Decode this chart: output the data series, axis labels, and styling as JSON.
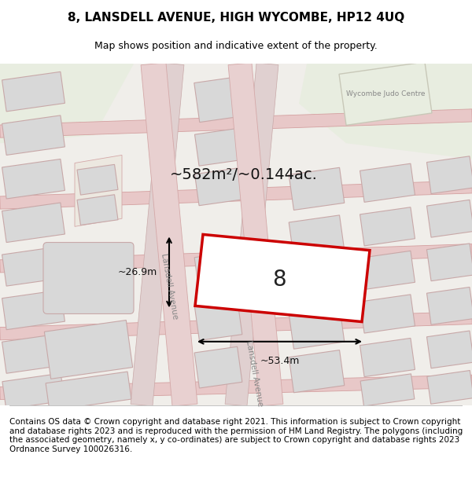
{
  "title": "8, LANSDELL AVENUE, HIGH WYCOMBE, HP12 4UQ",
  "subtitle": "Map shows position and indicative extent of the property.",
  "footer": "Contains OS data © Crown copyright and database right 2021. This information is subject to Crown copyright and database rights 2023 and is reproduced with the permission of HM Land Registry. The polygons (including the associated geometry, namely x, y co-ordinates) are subject to Crown copyright and database rights 2023 Ordnance Survey 100026316.",
  "area_label": "~582m²/~0.144ac.",
  "property_number": "8",
  "width_label": "~53.4m",
  "height_label": "~26.9m",
  "street_label_1": "Lansdell Avenue",
  "street_label_2": "Lansdell Avenue",
  "judo_label": "Wycombe Judo Centre",
  "bg_color": "#f5f4f1",
  "map_bg": "#f0eeea",
  "road_color": "#e8c8c8",
  "road_stroke": "#d4a0a0",
  "plot_color": "#cc0000",
  "plot_fill": "#ffffff",
  "building_fill": "#d8d8d8",
  "building_stroke": "#c8a8a8",
  "green_fill": "#e8ede0",
  "title_fontsize": 11,
  "subtitle_fontsize": 9,
  "footer_fontsize": 7.5
}
